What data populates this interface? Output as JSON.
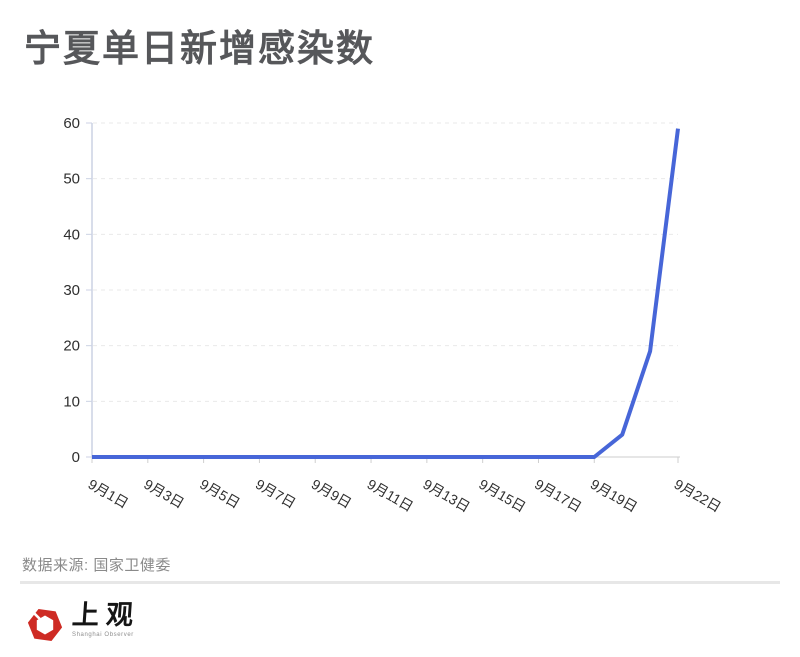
{
  "header": {
    "title": "宁夏单日新增感染数"
  },
  "chart_data": {
    "type": "line",
    "title": "宁夏单日新增感染数",
    "x": [
      "9月1日",
      "9月2日",
      "9月3日",
      "9月4日",
      "9月5日",
      "9月6日",
      "9月7日",
      "9月8日",
      "9月9日",
      "9月10日",
      "9月11日",
      "9月12日",
      "9月13日",
      "9月14日",
      "9月15日",
      "9月16日",
      "9月17日",
      "9月18日",
      "9月19日",
      "9月20日",
      "9月21日",
      "9月22日"
    ],
    "values": [
      0,
      0,
      0,
      0,
      0,
      0,
      0,
      0,
      0,
      0,
      0,
      0,
      0,
      0,
      0,
      0,
      0,
      0,
      0,
      4,
      19,
      59
    ],
    "xtick_indices": [
      0,
      2,
      4,
      6,
      8,
      10,
      12,
      14,
      16,
      18,
      21
    ],
    "yticks": [
      0,
      10,
      20,
      30,
      40,
      50,
      60
    ],
    "ylim": [
      0,
      60
    ],
    "grid": true,
    "line_color": "#4766d8"
  },
  "footer": {
    "source": "数据来源: 国家卫健委",
    "logo": {
      "cn": "上观",
      "en": "Shanghai Observer",
      "red": "#ce2b24"
    }
  }
}
